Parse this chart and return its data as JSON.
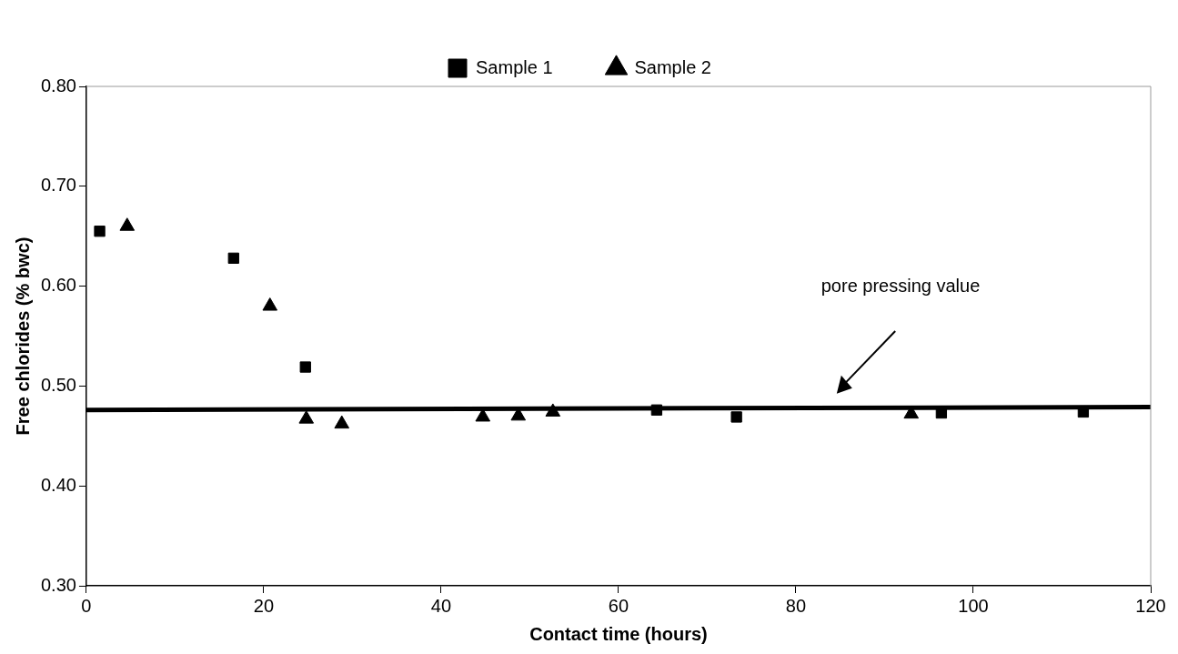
{
  "chart_data": {
    "type": "scatter",
    "xlabel": "Contact time (hours)",
    "ylabel": "Free chlorides (% bwc)",
    "xlim": [
      0,
      120
    ],
    "xticks": [
      0,
      20,
      40,
      60,
      80,
      100,
      120
    ],
    "ylim": [
      0.3,
      0.8
    ],
    "yticks": [
      {
        "value": 0.3,
        "label": "0.30"
      },
      {
        "value": 0.4,
        "label": "0.40"
      },
      {
        "value": 0.5,
        "label": "0.50"
      },
      {
        "value": 0.6,
        "label": "0.60"
      },
      {
        "value": 0.7,
        "label": "0.70"
      },
      {
        "value": 0.8,
        "label": "0.80"
      }
    ],
    "grid": false,
    "legend": "top",
    "series": [
      {
        "name": "Sample 1",
        "color": "#000000",
        "marker": "square",
        "x": [
          1.5,
          16.6,
          24.7,
          64.3,
          73.3,
          96.4,
          112.4
        ],
        "values": [
          0.655,
          0.628,
          0.519,
          0.476,
          0.469,
          0.473,
          0.474
        ]
      },
      {
        "name": "Sample 2",
        "color": "#000000",
        "marker": "triangle",
        "x": [
          4.6,
          20.7,
          24.8,
          28.8,
          44.7,
          48.7,
          52.6,
          93.0
        ],
        "values": [
          0.66,
          0.58,
          0.467,
          0.462,
          0.469,
          0.47,
          0.474,
          0.472
        ]
      },
      {
        "type": "line",
        "color": "#000000",
        "marker": "none",
        "x": [
          0,
          120
        ],
        "values": [
          0.476,
          0.479
        ]
      }
    ],
    "annotations": [
      "pore pressing value"
    ]
  }
}
